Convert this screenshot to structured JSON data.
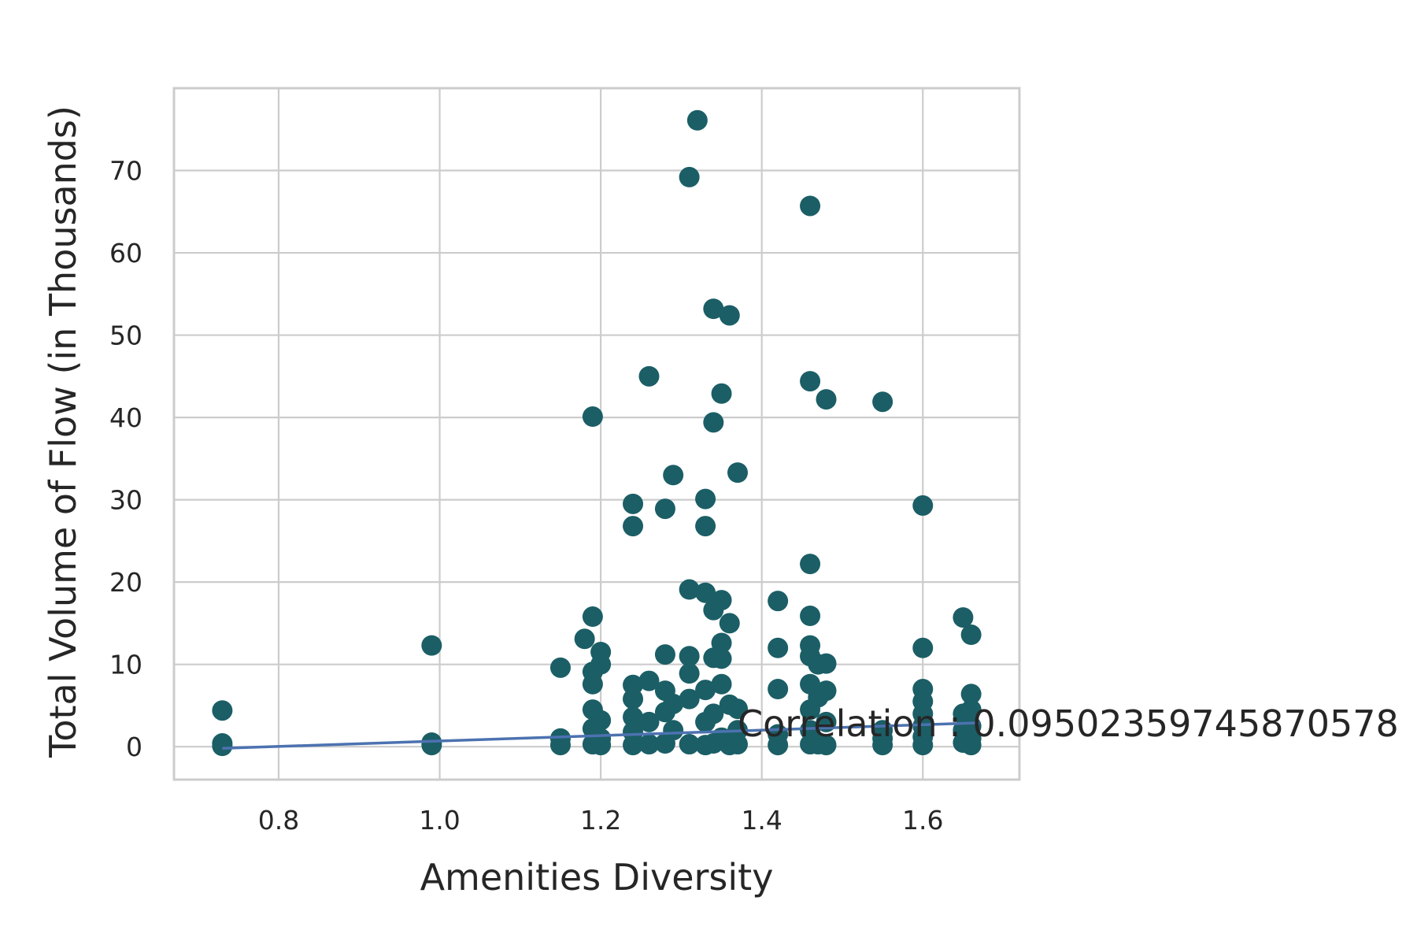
{
  "chart_data": {
    "type": "scatter",
    "title": "",
    "xlabel": "Amenities Diversity",
    "ylabel": "Total Volume of Flow (in Thousands)",
    "xlim": [
      0.67,
      1.72
    ],
    "ylim": [
      -4,
      80
    ],
    "xticks": [
      0.8,
      1.0,
      1.2,
      1.4,
      1.6
    ],
    "xtick_labels": [
      "0.8",
      "1.0",
      "1.2",
      "1.4",
      "1.6"
    ],
    "yticks": [
      0,
      10,
      20,
      30,
      40,
      50,
      60,
      70
    ],
    "ytick_labels": [
      "0",
      "10",
      "20",
      "30",
      "40",
      "50",
      "60",
      "70"
    ],
    "grid": true,
    "marker_color": "#1b5e66",
    "trend_color": "#4c72b0",
    "annotation": {
      "text": "Correlation : 0.09502359745870578",
      "x": 1.37,
      "y": 2.8
    },
    "trendline": {
      "x": [
        0.73,
        1.67
      ],
      "y": [
        -0.2,
        2.9
      ]
    },
    "points": [
      [
        0.73,
        4.4
      ],
      [
        0.73,
        0.4
      ],
      [
        0.73,
        0.1
      ],
      [
        0.99,
        12.3
      ],
      [
        0.99,
        0.5
      ],
      [
        0.99,
        0.2
      ],
      [
        1.15,
        9.6
      ],
      [
        1.15,
        1.0
      ],
      [
        1.15,
        0.2
      ],
      [
        1.18,
        13.1
      ],
      [
        1.19,
        40.1
      ],
      [
        1.19,
        15.8
      ],
      [
        1.19,
        9.1
      ],
      [
        1.19,
        7.6
      ],
      [
        1.19,
        4.5
      ],
      [
        1.19,
        2.2
      ],
      [
        1.19,
        0.3
      ],
      [
        1.2,
        11.5
      ],
      [
        1.2,
        10.0
      ],
      [
        1.2,
        3.2
      ],
      [
        1.2,
        1.0
      ],
      [
        1.2,
        0.2
      ],
      [
        1.24,
        29.5
      ],
      [
        1.24,
        26.8
      ],
      [
        1.24,
        7.5
      ],
      [
        1.24,
        5.8
      ],
      [
        1.24,
        3.6
      ],
      [
        1.24,
        1.8
      ],
      [
        1.24,
        0.2
      ],
      [
        1.26,
        45.0
      ],
      [
        1.26,
        8.0
      ],
      [
        1.26,
        3.0
      ],
      [
        1.26,
        0.3
      ],
      [
        1.28,
        28.9
      ],
      [
        1.28,
        11.2
      ],
      [
        1.28,
        6.8
      ],
      [
        1.28,
        4.2
      ],
      [
        1.28,
        0.4
      ],
      [
        1.29,
        33.0
      ],
      [
        1.29,
        5.2
      ],
      [
        1.29,
        2.0
      ],
      [
        1.31,
        69.2
      ],
      [
        1.31,
        19.1
      ],
      [
        1.31,
        11.0
      ],
      [
        1.31,
        8.9
      ],
      [
        1.31,
        5.8
      ],
      [
        1.31,
        0.3
      ],
      [
        1.32,
        76.1
      ],
      [
        1.33,
        30.1
      ],
      [
        1.33,
        26.8
      ],
      [
        1.33,
        18.7
      ],
      [
        1.33,
        6.9
      ],
      [
        1.33,
        3.0
      ],
      [
        1.33,
        0.2
      ],
      [
        1.34,
        39.4
      ],
      [
        1.34,
        16.6
      ],
      [
        1.34,
        10.8
      ],
      [
        1.34,
        4.0
      ],
      [
        1.34,
        0.4
      ],
      [
        1.34,
        53.2
      ],
      [
        1.35,
        42.9
      ],
      [
        1.35,
        17.8
      ],
      [
        1.35,
        12.6
      ],
      [
        1.35,
        10.7
      ],
      [
        1.35,
        7.6
      ],
      [
        1.35,
        1.1
      ],
      [
        1.36,
        52.4
      ],
      [
        1.36,
        15.0
      ],
      [
        1.36,
        5.1
      ],
      [
        1.36,
        0.2
      ],
      [
        1.37,
        33.3
      ],
      [
        1.37,
        4.6
      ],
      [
        1.37,
        2.0
      ],
      [
        1.37,
        0.3
      ],
      [
        1.42,
        17.7
      ],
      [
        1.42,
        12.0
      ],
      [
        1.42,
        7.0
      ],
      [
        1.42,
        1.5
      ],
      [
        1.42,
        0.2
      ],
      [
        1.46,
        65.7
      ],
      [
        1.46,
        44.4
      ],
      [
        1.46,
        22.2
      ],
      [
        1.46,
        15.9
      ],
      [
        1.46,
        12.3
      ],
      [
        1.46,
        11.0
      ],
      [
        1.46,
        7.6
      ],
      [
        1.46,
        4.5
      ],
      [
        1.46,
        2.0
      ],
      [
        1.46,
        0.3
      ],
      [
        1.47,
        10.0
      ],
      [
        1.47,
        6.0
      ],
      [
        1.47,
        0.3
      ],
      [
        1.48,
        42.2
      ],
      [
        1.48,
        10.1
      ],
      [
        1.48,
        6.8
      ],
      [
        1.48,
        3.0
      ],
      [
        1.48,
        0.2
      ],
      [
        1.55,
        41.9
      ],
      [
        1.55,
        2.0
      ],
      [
        1.55,
        1.0
      ],
      [
        1.55,
        0.2
      ],
      [
        1.6,
        29.3
      ],
      [
        1.6,
        12.0
      ],
      [
        1.6,
        7.0
      ],
      [
        1.6,
        5.5
      ],
      [
        1.6,
        4.0
      ],
      [
        1.6,
        2.5
      ],
      [
        1.6,
        1.2
      ],
      [
        1.6,
        0.2
      ],
      [
        1.65,
        15.7
      ],
      [
        1.65,
        4.0
      ],
      [
        1.65,
        2.0
      ],
      [
        1.65,
        0.5
      ],
      [
        1.66,
        13.6
      ],
      [
        1.66,
        6.4
      ],
      [
        1.66,
        4.5
      ],
      [
        1.66,
        2.5
      ],
      [
        1.66,
        1.0
      ],
      [
        1.66,
        0.2
      ]
    ]
  }
}
